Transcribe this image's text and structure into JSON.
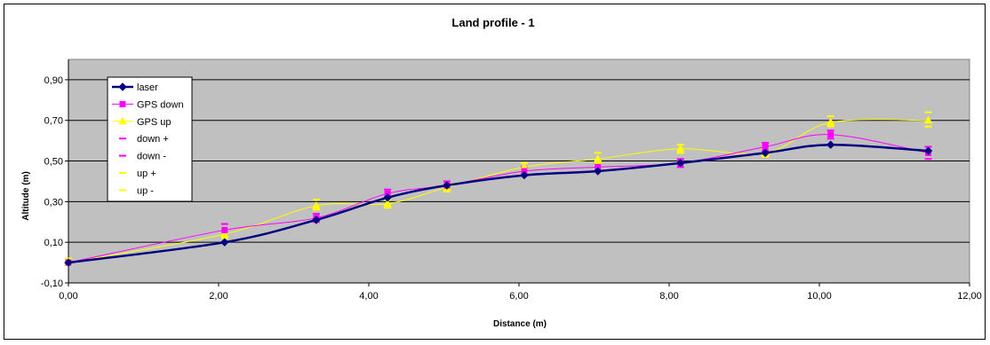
{
  "chart_data": {
    "type": "line",
    "title": "Land profile - 1",
    "xlabel": "Distance (m)",
    "ylabel": "Altitude (m)",
    "xlim": [
      0,
      12
    ],
    "ylim": [
      -0.1,
      1.0
    ],
    "x_ticks": [
      "0,00",
      "2,00",
      "4,00",
      "6,00",
      "8,00",
      "10,00",
      "12,00"
    ],
    "y_ticks": [
      "-0,10",
      "0,10",
      "0,30",
      "0,50",
      "0,70",
      "0,90"
    ],
    "x_tick_values": [
      0,
      2,
      4,
      6,
      8,
      10,
      12
    ],
    "y_tick_values": [
      -0.1,
      0.1,
      0.3,
      0.5,
      0.7,
      0.9
    ],
    "grid": "horizontal",
    "plot_background": "#C0C0C0",
    "legend_position": "upper-left",
    "series": [
      {
        "name": "laser",
        "color": "#000080",
        "marker": "diamond",
        "x": [
          0.0,
          2.08,
          3.3,
          4.25,
          5.04,
          6.07,
          7.05,
          8.15,
          9.28,
          10.15,
          11.45
        ],
        "y": [
          0.0,
          0.1,
          0.21,
          0.32,
          0.38,
          0.43,
          0.45,
          0.49,
          0.54,
          0.58,
          0.55
        ]
      },
      {
        "name": "GPS down",
        "color": "#FF00FF",
        "marker": "square",
        "x": [
          0.0,
          2.08,
          3.3,
          4.25,
          5.04,
          6.07,
          7.05,
          8.15,
          9.28,
          10.15,
          11.45
        ],
        "y": [
          0.0,
          0.16,
          0.22,
          0.34,
          0.38,
          0.45,
          0.47,
          0.49,
          0.57,
          0.63,
          0.54
        ]
      },
      {
        "name": "GPS up",
        "color": "#FFFF00",
        "marker": "triangle",
        "x": [
          0.0,
          2.08,
          3.3,
          4.25,
          5.04,
          6.07,
          7.05,
          8.15,
          9.28,
          10.15,
          11.45
        ],
        "y": [
          0.0,
          0.14,
          0.28,
          0.29,
          0.37,
          0.47,
          0.51,
          0.56,
          0.54,
          0.69,
          0.7
        ]
      },
      {
        "name": "down +",
        "color": "#FF00FF",
        "marker": "dash",
        "x": [
          0.0,
          2.08,
          3.3,
          4.25,
          5.04,
          6.07,
          7.05,
          8.15,
          9.28,
          10.15,
          11.45
        ],
        "y": [
          0.02,
          0.19,
          0.24,
          0.36,
          0.4,
          0.47,
          0.49,
          0.51,
          0.59,
          0.65,
          0.57
        ]
      },
      {
        "name": "down -",
        "color": "#FF00FF",
        "marker": "dash",
        "x": [
          0.0,
          2.08,
          3.3,
          4.25,
          5.04,
          6.07,
          7.05,
          8.15,
          9.28,
          10.15,
          11.45
        ],
        "y": [
          -0.01,
          0.13,
          0.2,
          0.32,
          0.36,
          0.43,
          0.45,
          0.47,
          0.55,
          0.61,
          0.51
        ]
      },
      {
        "name": "up +",
        "color": "#FFFF00",
        "marker": "dash",
        "x": [
          0.0,
          2.08,
          3.3,
          4.25,
          5.04,
          6.07,
          7.05,
          8.15,
          9.28,
          10.15,
          11.45
        ],
        "y": [
          0.02,
          0.17,
          0.31,
          0.31,
          0.39,
          0.49,
          0.54,
          0.58,
          0.56,
          0.72,
          0.74
        ]
      },
      {
        "name": "up -",
        "color": "#FFFF00",
        "marker": "dash",
        "x": [
          0.0,
          2.08,
          3.3,
          4.25,
          5.04,
          6.07,
          7.05,
          8.15,
          9.28,
          10.15,
          11.45
        ],
        "y": [
          -0.01,
          0.12,
          0.26,
          0.27,
          0.35,
          0.45,
          0.49,
          0.54,
          0.52,
          0.67,
          0.67
        ]
      }
    ]
  }
}
